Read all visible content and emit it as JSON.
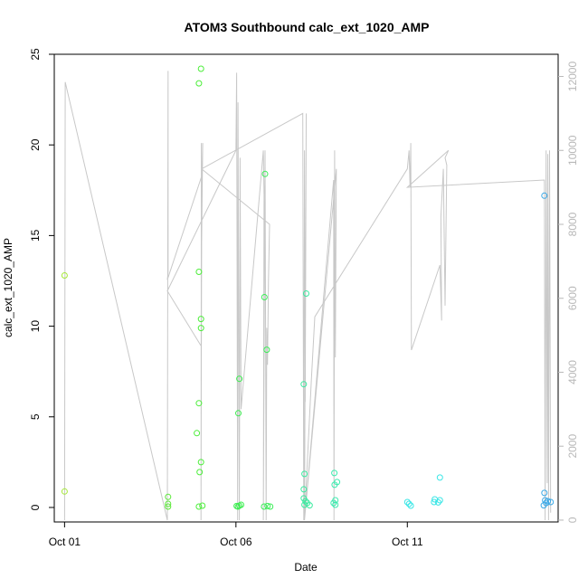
{
  "chart_data": {
    "type": "scatter",
    "title": "ATOM3 Southbound calc_ext_1020_AMP",
    "xlabel": "Date",
    "ylabel": "calc_ext_1020_AMP",
    "x_unit": "days since Oct 01",
    "xlim": [
      -0.3,
      14.4
    ],
    "ylim": [
      -0.8,
      25
    ],
    "y2lim": [
      -50,
      12600
    ],
    "x_ticks": [
      {
        "value": 0,
        "label": "Oct 01"
      },
      {
        "value": 5,
        "label": "Oct 06"
      },
      {
        "value": 10,
        "label": "Oct 11"
      }
    ],
    "y_ticks": [
      {
        "value": 0,
        "label": "0"
      },
      {
        "value": 5,
        "label": "5"
      },
      {
        "value": 10,
        "label": "10"
      },
      {
        "value": 15,
        "label": "15"
      },
      {
        "value": 20,
        "label": "20"
      },
      {
        "value": 25,
        "label": "25"
      }
    ],
    "y2_ticks": [
      {
        "value": 0,
        "label": "0"
      },
      {
        "value": 2000,
        "label": "2000"
      },
      {
        "value": 4000,
        "label": "4000"
      },
      {
        "value": 6000,
        "label": "6000"
      },
      {
        "value": 8000,
        "label": "8000"
      },
      {
        "value": 10000,
        "label": "10000"
      },
      {
        "value": 12000,
        "label": "12000"
      }
    ],
    "points": [
      {
        "x": 0.0,
        "y": 12.8,
        "color": "#a6e83a"
      },
      {
        "x": 0.0,
        "y": 0.88,
        "color": "#a6e83a"
      },
      {
        "x": 3.02,
        "y": 0.58,
        "color": "#5ce83a"
      },
      {
        "x": 3.02,
        "y": 0.2,
        "color": "#5ce83a"
      },
      {
        "x": 3.02,
        "y": 0.05,
        "color": "#5ce83a"
      },
      {
        "x": 3.98,
        "y": 24.2,
        "color": "#4cee3a"
      },
      {
        "x": 3.92,
        "y": 23.4,
        "color": "#4cee3a"
      },
      {
        "x": 3.92,
        "y": 13.0,
        "color": "#4cee3a"
      },
      {
        "x": 3.98,
        "y": 10.4,
        "color": "#4cee3a"
      },
      {
        "x": 3.98,
        "y": 9.9,
        "color": "#4cee3a"
      },
      {
        "x": 3.92,
        "y": 5.75,
        "color": "#4cee3a"
      },
      {
        "x": 3.86,
        "y": 4.1,
        "color": "#4cee3a"
      },
      {
        "x": 3.98,
        "y": 2.5,
        "color": "#4cee3a"
      },
      {
        "x": 3.94,
        "y": 1.95,
        "color": "#4cee3a"
      },
      {
        "x": 3.92,
        "y": 0.05,
        "color": "#4cee3a"
      },
      {
        "x": 4.02,
        "y": 0.1,
        "color": "#4cee3a"
      },
      {
        "x": 5.1,
        "y": 7.1,
        "color": "#3cee50"
      },
      {
        "x": 5.07,
        "y": 5.2,
        "color": "#3cee50"
      },
      {
        "x": 5.06,
        "y": 0.05,
        "color": "#3cee50"
      },
      {
        "x": 5.1,
        "y": 0.1,
        "color": "#3cee50"
      },
      {
        "x": 5.15,
        "y": 0.15,
        "color": "#3cee50"
      },
      {
        "x": 5.02,
        "y": 0.08,
        "color": "#3cee50"
      },
      {
        "x": 5.85,
        "y": 18.4,
        "color": "#3cee58"
      },
      {
        "x": 5.83,
        "y": 11.6,
        "color": "#3cee58"
      },
      {
        "x": 5.9,
        "y": 8.7,
        "color": "#3cee58"
      },
      {
        "x": 5.82,
        "y": 0.05,
        "color": "#3cee58"
      },
      {
        "x": 5.92,
        "y": 0.08,
        "color": "#3cee58"
      },
      {
        "x": 6.0,
        "y": 0.05,
        "color": "#3cee58"
      },
      {
        "x": 7.05,
        "y": 11.8,
        "color": "#3aeba0"
      },
      {
        "x": 6.98,
        "y": 6.8,
        "color": "#3aeba0"
      },
      {
        "x": 7.0,
        "y": 1.85,
        "color": "#3aeba0"
      },
      {
        "x": 6.98,
        "y": 1.0,
        "color": "#3aeba0"
      },
      {
        "x": 6.98,
        "y": 0.5,
        "color": "#3aeba0"
      },
      {
        "x": 7.03,
        "y": 0.35,
        "color": "#3aeba0"
      },
      {
        "x": 7.08,
        "y": 0.25,
        "color": "#3aeba0"
      },
      {
        "x": 7.0,
        "y": 0.15,
        "color": "#3aeba0"
      },
      {
        "x": 7.15,
        "y": 0.12,
        "color": "#3aeba0"
      },
      {
        "x": 7.87,
        "y": 1.9,
        "color": "#3aebae"
      },
      {
        "x": 7.95,
        "y": 1.4,
        "color": "#3aebae"
      },
      {
        "x": 7.88,
        "y": 1.25,
        "color": "#3aebae"
      },
      {
        "x": 7.9,
        "y": 0.4,
        "color": "#3aebae"
      },
      {
        "x": 7.85,
        "y": 0.25,
        "color": "#3aebae"
      },
      {
        "x": 7.9,
        "y": 0.15,
        "color": "#3aebae"
      },
      {
        "x": 10.0,
        "y": 0.3,
        "color": "#3ae6e6"
      },
      {
        "x": 10.05,
        "y": 0.2,
        "color": "#3ae6e6"
      },
      {
        "x": 10.1,
        "y": 0.1,
        "color": "#3ae6e6"
      },
      {
        "x": 10.95,
        "y": 1.65,
        "color": "#3ae6e6"
      },
      {
        "x": 10.8,
        "y": 0.45,
        "color": "#3ae6e6"
      },
      {
        "x": 10.95,
        "y": 0.4,
        "color": "#3ae6e6"
      },
      {
        "x": 10.78,
        "y": 0.3,
        "color": "#3ae6e6"
      },
      {
        "x": 10.9,
        "y": 0.28,
        "color": "#3ae6e6"
      },
      {
        "x": 14.0,
        "y": 17.2,
        "color": "#3aa8e6"
      },
      {
        "x": 14.0,
        "y": 0.8,
        "color": "#3aa8e6"
      },
      {
        "x": 14.02,
        "y": 0.4,
        "color": "#3aa8e6"
      },
      {
        "x": 14.1,
        "y": 0.35,
        "color": "#3aa8e6"
      },
      {
        "x": 14.18,
        "y": 0.3,
        "color": "#3aa8e6"
      },
      {
        "x": 14.05,
        "y": 0.25,
        "color": "#3aa8e6"
      },
      {
        "x": 13.98,
        "y": 0.12,
        "color": "#3aa8e6"
      }
    ],
    "line_series": {
      "color": "#c8c8c8",
      "axis": "right",
      "points": [
        [
          0.0,
          0
        ],
        [
          0.02,
          11850
        ],
        [
          3.0,
          0
        ],
        [
          3.02,
          12150
        ],
        [
          3.02,
          6700
        ],
        [
          3.0,
          6500
        ],
        [
          4.0,
          9300
        ],
        [
          3.98,
          0
        ],
        [
          3.99,
          10200
        ],
        [
          4.0,
          8500
        ],
        [
          4.03,
          10200
        ],
        [
          4.0,
          7500
        ],
        [
          3.99,
          4700
        ],
        [
          3.0,
          6200
        ],
        [
          5.0,
          10000
        ],
        [
          5.02,
          12100
        ],
        [
          5.05,
          0
        ],
        [
          5.06,
          11300
        ],
        [
          5.1,
          0
        ],
        [
          5.12,
          9800
        ],
        [
          5.15,
          3000
        ],
        [
          5.8,
          10000
        ],
        [
          5.82,
          8800
        ],
        [
          5.8,
          0
        ],
        [
          5.85,
          10000
        ],
        [
          5.88,
          0
        ],
        [
          5.9,
          5200
        ],
        [
          5.92,
          4200
        ],
        [
          5.95,
          6500
        ],
        [
          5.98,
          8000
        ],
        [
          4.0,
          9500
        ],
        [
          6.95,
          11000
        ],
        [
          6.98,
          0
        ],
        [
          7.0,
          10000
        ],
        [
          7.02,
          3200
        ],
        [
          7.05,
          11000
        ],
        [
          7.0,
          0
        ],
        [
          7.85,
          9200
        ],
        [
          7.86,
          0
        ],
        [
          7.88,
          10000
        ],
        [
          7.9,
          4400
        ],
        [
          7.93,
          9500
        ],
        [
          7.0,
          0
        ],
        [
          7.2,
          3800
        ],
        [
          7.3,
          5500
        ],
        [
          10.0,
          9500
        ],
        [
          10.05,
          10000
        ],
        [
          10.08,
          9000
        ],
        [
          10.1,
          10200
        ],
        [
          10.12,
          4600
        ],
        [
          10.95,
          6900
        ],
        [
          11.0,
          5400
        ],
        [
          10.98,
          8200
        ],
        [
          11.05,
          9500
        ],
        [
          11.1,
          5800
        ],
        [
          11.15,
          9600
        ],
        [
          11.1,
          9800
        ],
        [
          11.2,
          10000
        ],
        [
          10.0,
          9000
        ],
        [
          14.0,
          9200
        ],
        [
          14.02,
          0
        ],
        [
          14.05,
          10000
        ],
        [
          14.08,
          1000
        ],
        [
          14.1,
          9900
        ],
        [
          14.12,
          0
        ],
        [
          14.15,
          10000
        ],
        [
          14.18,
          200
        ]
      ]
    }
  }
}
